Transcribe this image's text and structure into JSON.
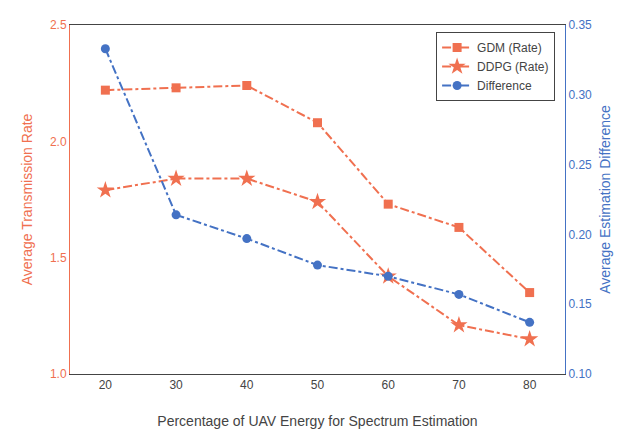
{
  "chart_data": {
    "type": "line",
    "xlabel": "Percentage of UAV Energy for Spectrum Estimation",
    "ylabel": "Average Transmission Rate",
    "y2label": "Average Estimation Difference",
    "x": [
      20,
      30,
      40,
      50,
      60,
      70,
      80
    ],
    "series": [
      {
        "name": "GDM (Rate)",
        "color": "#f07050",
        "marker": "square",
        "line_style": "dashdot",
        "values": [
          2.22,
          2.23,
          2.24,
          2.08,
          1.73,
          1.63,
          1.35
        ]
      },
      {
        "name": "DDPG (Rate)",
        "color": "#f07050",
        "marker": "star",
        "line_style": "dashdot",
        "values": [
          1.79,
          1.84,
          1.84,
          1.74,
          1.42,
          1.21,
          1.15
        ]
      },
      {
        "name": "Difference",
        "color": "#4472c4",
        "marker": "circle",
        "line_style": "dashdot",
        "axis": "y2",
        "values": [
          0.333,
          0.214,
          0.197,
          0.178,
          0.17,
          0.157,
          0.137
        ]
      }
    ],
    "xlim": [
      15,
      85
    ],
    "xticks": [
      20,
      30,
      40,
      50,
      60,
      70,
      80
    ],
    "ylim": [
      1.0,
      2.5
    ],
    "yticks": [
      {
        "value": 1.0,
        "label": "1.0"
      },
      1.5,
      {
        "value": 2.0,
        "label": "2.0"
      },
      2.5
    ],
    "y2lim": [
      0.1,
      0.35
    ],
    "y2ticks": [
      {
        "value": 0.1,
        "label": "0.10"
      },
      0.15,
      {
        "value": 0.2,
        "label": "0.20"
      },
      0.25,
      {
        "value": 0.3,
        "label": "0.30"
      },
      0.35
    ],
    "legend": "upper right",
    "grid": false
  }
}
